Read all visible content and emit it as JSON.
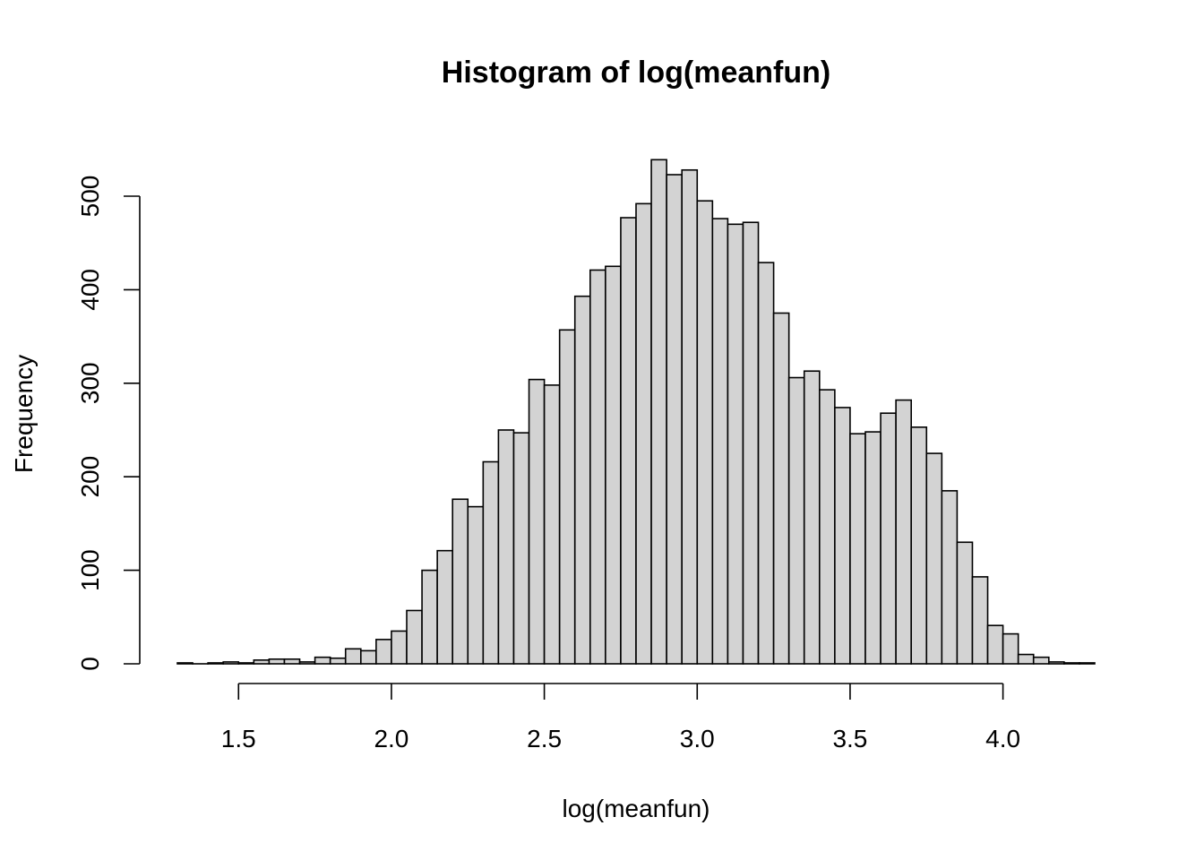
{
  "chart_data": {
    "type": "bar",
    "title": "Histogram of log(meanfun)",
    "xlabel": "log(meanfun)",
    "ylabel": "Frequency",
    "xlim": [
      1.3,
      4.3
    ],
    "ylim": [
      0,
      540
    ],
    "x_ticks": [
      1.5,
      2.0,
      2.5,
      3.0,
      3.5,
      4.0
    ],
    "x_tick_labels": [
      "1.5",
      "2.0",
      "2.5",
      "3.0",
      "3.5",
      "4.0"
    ],
    "y_ticks": [
      0,
      100,
      200,
      300,
      400,
      500
    ],
    "y_tick_labels": [
      "0",
      "100",
      "200",
      "300",
      "400",
      "500"
    ],
    "bin_width": 0.05,
    "bin_starts": [
      1.3,
      1.35,
      1.4,
      1.45,
      1.5,
      1.55,
      1.6,
      1.65,
      1.7,
      1.75,
      1.8,
      1.85,
      1.9,
      1.95,
      2.0,
      2.05,
      2.1,
      2.15,
      2.2,
      2.25,
      2.3,
      2.35,
      2.4,
      2.45,
      2.5,
      2.55,
      2.6,
      2.65,
      2.7,
      2.75,
      2.8,
      2.85,
      2.9,
      2.95,
      3.0,
      3.05,
      3.1,
      3.15,
      3.2,
      3.25,
      3.3,
      3.35,
      3.4,
      3.45,
      3.5,
      3.55,
      3.6,
      3.65,
      3.7,
      3.75,
      3.8,
      3.85,
      3.9,
      3.95,
      4.0,
      4.05,
      4.1,
      4.15,
      4.2,
      4.25
    ],
    "values": [
      1,
      0,
      1,
      2,
      1,
      4,
      5,
      5,
      2,
      7,
      6,
      16,
      14,
      26,
      35,
      57,
      100,
      121,
      176,
      168,
      216,
      250,
      247,
      304,
      298,
      357,
      393,
      421,
      425,
      477,
      492,
      539,
      523,
      528,
      495,
      476,
      470,
      472,
      429,
      375,
      306,
      313,
      293,
      274,
      246,
      248,
      268,
      282,
      253,
      225,
      185,
      130,
      93,
      41,
      32,
      10,
      7,
      2,
      1,
      1
    ],
    "grid": false,
    "legend": "none",
    "bar_fill": "#d3d3d3",
    "bar_stroke": "#000000"
  }
}
